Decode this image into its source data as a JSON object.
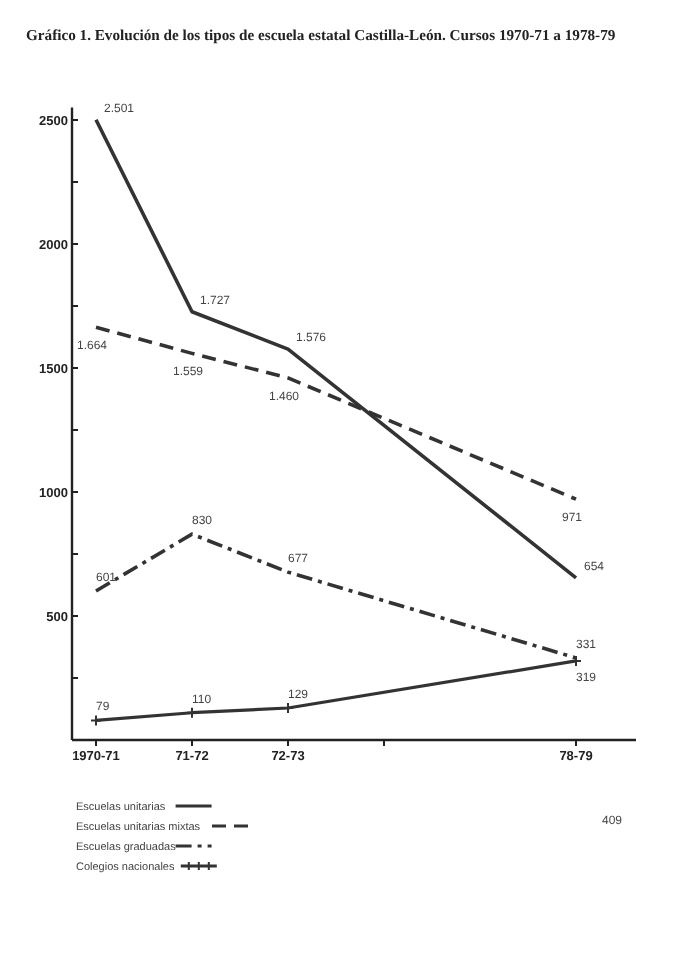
{
  "chart_data": {
    "type": "line",
    "title": "Gráfico 1. Evolución de los tipos de escuela estatal Castilla-León. Cursos 1970-71 a 1978-79",
    "categories": [
      "1970-71",
      "71-72",
      "72-73",
      null,
      null,
      "78-79"
    ],
    "ylim": [
      0,
      2550
    ],
    "yticks": [
      {
        "value": 0,
        "label": null
      },
      {
        "value": 250,
        "label": null
      },
      500,
      {
        "value": 750,
        "label": null
      },
      1000,
      {
        "value": 1250,
        "label": null
      },
      1500,
      {
        "value": 1750,
        "label": null
      },
      2000,
      {
        "value": 2250,
        "label": null
      },
      2500
    ],
    "series": [
      {
        "name": "Escuelas unitarias",
        "color": "#333333",
        "line_style": "solid",
        "values": [
          2501,
          1727,
          1576,
          null,
          null,
          654
        ],
        "value_labels": [
          "2.501",
          "1.727",
          "1.576",
          null,
          null,
          "654"
        ]
      },
      {
        "name": "Escuelas unitarias mixtas",
        "color": "#333333",
        "line_style": "dashed",
        "values": [
          1664,
          1559,
          1460,
          null,
          null,
          971
        ],
        "value_labels": [
          "1.664",
          "1.559",
          "1.460",
          null,
          null,
          "971"
        ]
      },
      {
        "name": "Escuelas graduadas",
        "color": "#333333",
        "line_style": "dashdot",
        "values": [
          601,
          830,
          677,
          null,
          null,
          331
        ]
      },
      {
        "name": "Colegios nacionales",
        "color": "#333333",
        "line_style": "solid",
        "marker": "cross",
        "values": [
          79,
          110,
          129,
          null,
          null,
          319
        ]
      }
    ],
    "data_labels": true,
    "legend": "bottom left",
    "annotations": [
      "409"
    ]
  }
}
